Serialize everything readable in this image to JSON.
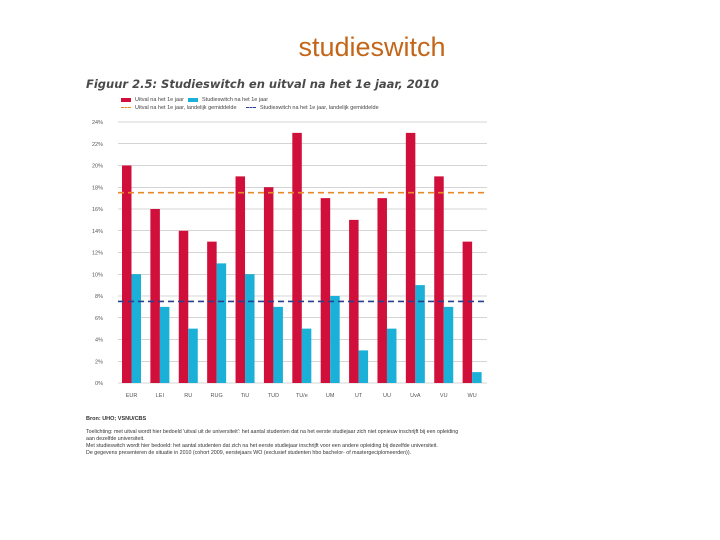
{
  "slide": {
    "title": "studieswitch"
  },
  "figure": {
    "title": "Figuur 2.5: Studieswitch en uitval na het 1e jaar, 2010",
    "source": "Bron: UHO; VSNU/CBS",
    "notes": [
      "Toelichting: met uitval wordt hier bedoeld 'uitval uit de universiteit': het aantal studenten dat na het eerste studiejaar zich niet opnieuw inschrijft bij een opleiding",
      "aan dezelfde universiteit.",
      "Met studieswitch wordt hier bedoeld: het aantal studenten dat zich na het eerste studiejaar inschrijft voor een andere opleiding bij dezelfde universiteit.",
      "De gegevens presenteren de situatie in 2010 (cohort 2009, eerstejaars WO (exclusief studenten hbo bachelor- of mastergeciplomeerden))."
    ]
  },
  "legend": {
    "uitval": "Uitval na het 1e jaar",
    "switch": "Studieswitch na het 1e jaar",
    "uitval_avg": "Uitval na het 1e jaar, landelijk gemiddelde",
    "switch_avg": "Studieswitch na het 1e jaar, landelijk gemiddelde"
  },
  "colors": {
    "uitval": "#d0103a",
    "switch": "#1ab0d8",
    "uitval_avg": "#e8892a",
    "switch_avg": "#2a3f8f",
    "grid": "#aaaaaa",
    "title": "#c3661a"
  },
  "chart_data": {
    "type": "bar",
    "title": "Figuur 2.5: Studieswitch en uitval na het 1e jaar, 2010",
    "xlabel": "",
    "ylabel": "",
    "ylim": [
      0,
      24
    ],
    "yticks": [
      0,
      2,
      4,
      6,
      8,
      10,
      12,
      14,
      16,
      18,
      20,
      22,
      24
    ],
    "ytick_labels": [
      "0%",
      "2%",
      "4%",
      "6%",
      "8%",
      "10%",
      "12%",
      "14%",
      "16%",
      "18%",
      "20%",
      "22%",
      "24%"
    ],
    "categories": [
      "EUR",
      "LEI",
      "RU",
      "RUG",
      "TiU",
      "TUD",
      "TU/e",
      "UM",
      "UT",
      "UU",
      "UvA",
      "VU",
      "WU"
    ],
    "series": [
      {
        "name": "Uitval na het 1e jaar",
        "values": [
          20,
          16,
          14,
          13,
          19,
          18,
          23,
          17,
          15,
          17,
          23,
          19,
          13
        ]
      },
      {
        "name": "Studieswitch na het 1e jaar",
        "values": [
          10,
          7,
          5,
          11,
          10,
          7,
          5,
          8,
          3,
          5,
          9,
          7,
          1
        ]
      }
    ],
    "reference_lines": [
      {
        "name": "Uitval na het 1e jaar, landelijk gemiddelde",
        "value": 17.5
      },
      {
        "name": "Studieswitch na het 1e jaar, landelijk gemiddelde",
        "value": 7.5
      }
    ],
    "grid": true,
    "legend_position": "top"
  }
}
